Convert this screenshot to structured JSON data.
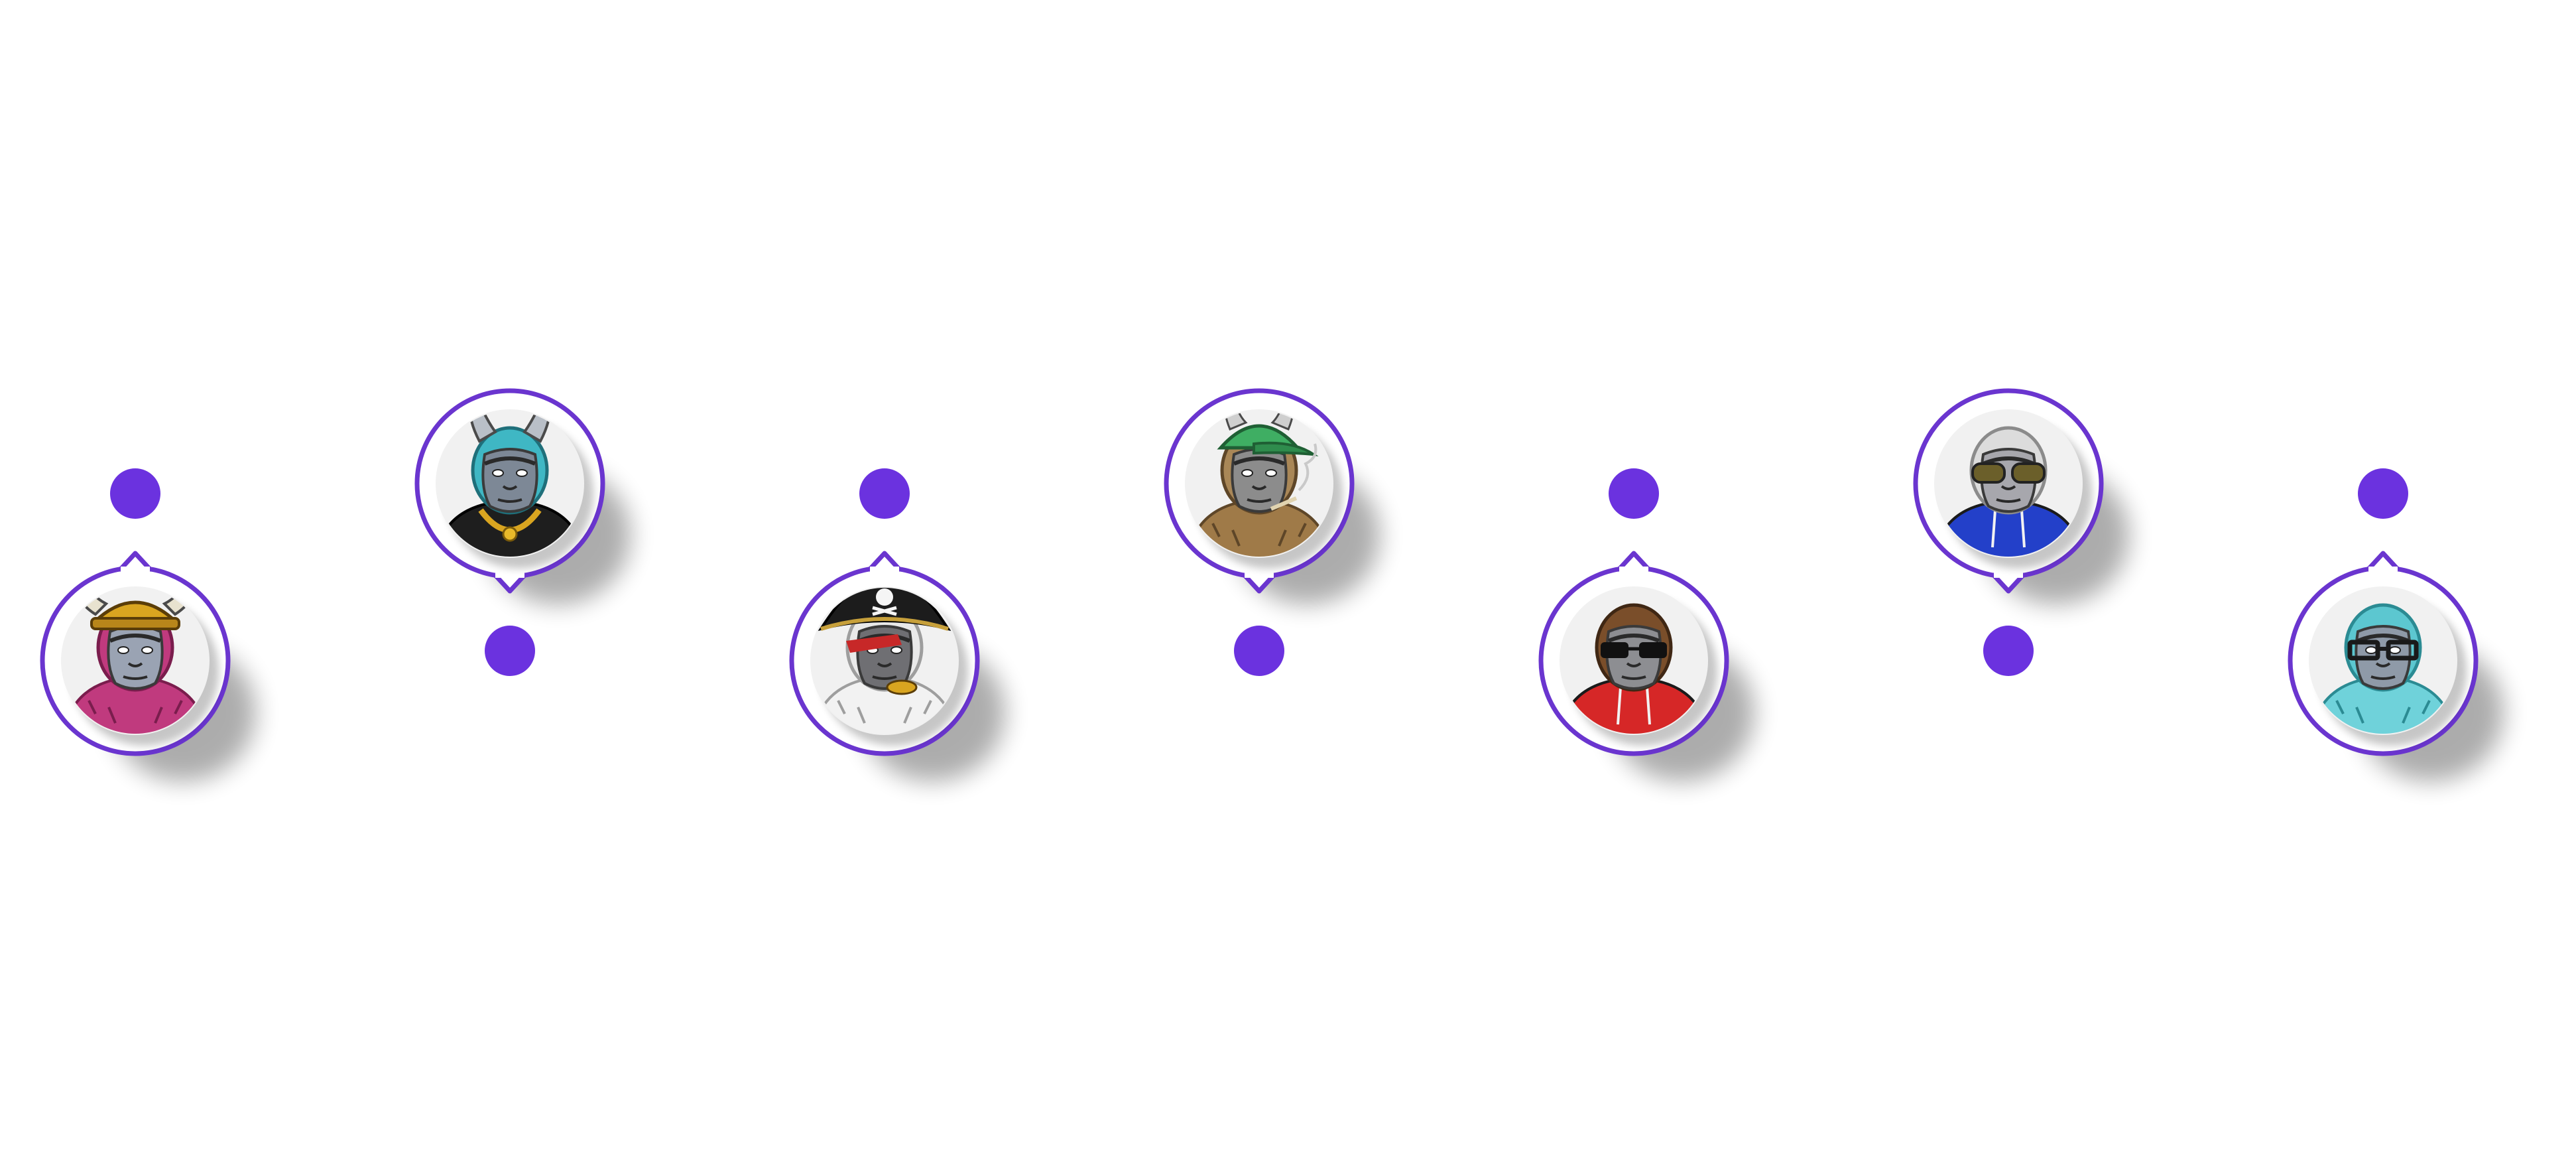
{
  "colors": {
    "accent": "#6b32df",
    "ring": "#6a35cf",
    "badge_fill": "#f1f1f1",
    "background": "#ffffff"
  },
  "avatars": [
    {
      "name": "gorilla-viking-helmet-avatar",
      "orientation": "down",
      "fur": "#c03a7e",
      "fur_dark": "#7a1d4d",
      "face": "#9aa3b3",
      "accessory": "viking-helmet",
      "accessory_color": "#d9a520",
      "outfit": "fur",
      "outfit_color": "#c03a7e"
    },
    {
      "name": "gorilla-horns-gold-chain-avatar",
      "orientation": "up",
      "fur": "#3fb7c4",
      "fur_dark": "#1f6f7a",
      "face": "#7d8896",
      "accessory": "horns",
      "accessory_color": "#b9bfc7",
      "outfit": "jacket-chain",
      "outfit_color": "#1e1e1e"
    },
    {
      "name": "gorilla-pirate-hat-avatar",
      "orientation": "down",
      "fur": "#e9e9e9",
      "fur_dark": "#9e9e9e",
      "face": "#6f6f73",
      "accessory": "pirate-hat",
      "accessory_color": "#1c1c1c",
      "outfit": "fur",
      "outfit_color": "#f2f2f2"
    },
    {
      "name": "gorilla-green-cap-smoke-avatar",
      "orientation": "up",
      "fur": "#a98757",
      "fur_dark": "#5e4628",
      "face": "#8c8c8c",
      "accessory": "green-cap",
      "accessory_color": "#3fae63",
      "outfit": "fur",
      "outfit_color": "#9f7a48"
    },
    {
      "name": "gorilla-red-hoodie-sunglasses-avatar",
      "orientation": "down",
      "fur": "#7a4e2a",
      "fur_dark": "#3f2714",
      "face": "#8d8e92",
      "accessory": "sunglasses",
      "accessory_color": "#111111",
      "outfit": "hoodie",
      "outfit_color": "#d62727"
    },
    {
      "name": "gorilla-blue-hoodie-goggles-avatar",
      "orientation": "up",
      "fur": "#dcdcdc",
      "fur_dark": "#8b8b8b",
      "face": "#a7a7ad",
      "accessory": "goggles",
      "accessory_color": "#6b5f2a",
      "outfit": "hoodie",
      "outfit_color": "#2340c9"
    },
    {
      "name": "gorilla-teal-glasses-avatar",
      "orientation": "down",
      "fur": "#5cc7d0",
      "fur_dark": "#2b8b93",
      "face": "#8f9aa8",
      "accessory": "glasses",
      "accessory_color": "#1a1a1a",
      "outfit": "fur",
      "outfit_color": "#6fd2da"
    }
  ]
}
